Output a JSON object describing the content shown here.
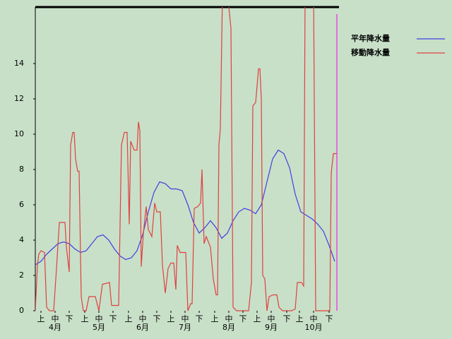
{
  "chart_data": {
    "type": "line",
    "xlim": [
      0,
      215
    ],
    "ylim": [
      0,
      17.2
    ],
    "yticks": [
      0,
      2,
      4,
      6,
      8,
      10,
      12,
      14
    ],
    "xticks": [
      {
        "value": 4,
        "label": "上"
      },
      {
        "value": 14,
        "label": "中"
      },
      {
        "value": 24,
        "label": "下"
      },
      {
        "value": 35,
        "label": "上"
      },
      {
        "value": 45,
        "label": "中"
      },
      {
        "value": 55,
        "label": "下"
      },
      {
        "value": 66,
        "label": "上"
      },
      {
        "value": 76,
        "label": "中"
      },
      {
        "value": 86,
        "label": "下"
      },
      {
        "value": 96,
        "label": "上"
      },
      {
        "value": 106,
        "label": "中"
      },
      {
        "value": 116,
        "label": "下"
      },
      {
        "value": 127,
        "label": "上"
      },
      {
        "value": 137,
        "label": "中"
      },
      {
        "value": 147,
        "label": "下"
      },
      {
        "value": 157,
        "label": "上"
      },
      {
        "value": 167,
        "label": "中"
      },
      {
        "value": 178,
        "label": "下"
      },
      {
        "value": 187,
        "label": "上"
      },
      {
        "value": 197,
        "label": "中"
      },
      {
        "value": 208,
        "label": "下"
      }
    ],
    "months": [
      "4月",
      "5月",
      "6月",
      "7月",
      "8月",
      "9月",
      "10月"
    ],
    "series": [
      {
        "name": "平年降水量",
        "color": "#4040e0",
        "x": [
          0,
          4,
          8,
          12,
          16,
          20,
          24,
          28,
          32,
          36,
          40,
          44,
          48,
          52,
          56,
          60,
          64,
          68,
          72,
          76,
          80,
          84,
          88,
          92,
          96,
          100,
          104,
          108,
          112,
          116,
          120,
          124,
          128,
          132,
          136,
          140,
          144,
          148,
          152,
          156,
          160,
          164,
          168,
          172,
          176,
          180,
          184,
          188,
          192,
          196,
          200,
          204,
          208,
          212
        ],
        "values": [
          2.6,
          2.8,
          3.2,
          3.5,
          3.8,
          3.9,
          3.8,
          3.5,
          3.3,
          3.4,
          3.8,
          4.2,
          4.3,
          4.0,
          3.5,
          3.1,
          2.9,
          3.0,
          3.4,
          4.3,
          5.6,
          6.7,
          7.3,
          7.2,
          6.9,
          6.9,
          6.8,
          6.0,
          5.0,
          4.4,
          4.7,
          5.1,
          4.7,
          4.1,
          4.4,
          5.1,
          5.6,
          5.8,
          5.7,
          5.5,
          6.0,
          7.3,
          8.6,
          9.1,
          8.9,
          8.1,
          6.6,
          5.6,
          5.4,
          5.2,
          4.9,
          4.5,
          3.7,
          2.8
        ]
      },
      {
        "name": "移動降水量",
        "color": "#e04040",
        "x": [
          0,
          1.5,
          2.5,
          4,
          6.5,
          8,
          10,
          13,
          15,
          17,
          21,
          22,
          24,
          25,
          26.5,
          27.5,
          28.5,
          30,
          31,
          32.5,
          34,
          36,
          38,
          42.5,
          45,
          47.5,
          52.5,
          54,
          59,
          61,
          63,
          65,
          66.5,
          67.5,
          70,
          72,
          73,
          74,
          75,
          76.5,
          78.5,
          80,
          82.5,
          84.5,
          86,
          88.5,
          90,
          92,
          94,
          96,
          98,
          99.5,
          100.5,
          102.5,
          106.5,
          108,
          110,
          111,
          112.5,
          115,
          117,
          118,
          119.5,
          121,
          124,
          126,
          128,
          129,
          130,
          131,
          132.5,
          136,
          138.5,
          140,
          142.5,
          151,
          153,
          154,
          156,
          158,
          159,
          160,
          161,
          162.5,
          164,
          165.5,
          168.5,
          171,
          172.5,
          175,
          181.5,
          184,
          185.5,
          188.5,
          190,
          191,
          197,
          198.5,
          208.5,
          209.5,
          211,
          213.5
        ],
        "values": [
          0,
          2.6,
          3.2,
          3.4,
          3.3,
          0.2,
          0,
          0,
          2.4,
          5.0,
          5.0,
          3.6,
          2.2,
          9.4,
          10.1,
          10.1,
          8.6,
          7.9,
          7.9,
          0.8,
          0,
          0,
          0.8,
          0.8,
          0,
          1.5,
          1.6,
          0.3,
          0.3,
          9.4,
          10.1,
          10.1,
          4.9,
          9.6,
          9.1,
          9.1,
          10.7,
          10.2,
          2.5,
          4.4,
          5.9,
          4.6,
          4.2,
          6.1,
          5.6,
          5.6,
          2.6,
          1.0,
          2.4,
          2.7,
          2.7,
          1.2,
          3.7,
          3.3,
          3.3,
          0,
          0.4,
          0.4,
          5.8,
          5.9,
          6.1,
          8.0,
          3.8,
          4.2,
          3.6,
          1.8,
          0.9,
          0.9,
          9.4,
          10.3,
          18,
          18,
          16.0,
          0.2,
          0,
          0,
          1.6,
          11.6,
          11.8,
          13.7,
          13.7,
          12.0,
          2.0,
          1.8,
          0,
          0.8,
          0.9,
          0.9,
          0.2,
          0,
          0,
          0.1,
          1.6,
          1.6,
          1.4,
          18,
          18,
          0,
          0,
          7.8,
          8.9,
          8.9
        ]
      }
    ]
  }
}
